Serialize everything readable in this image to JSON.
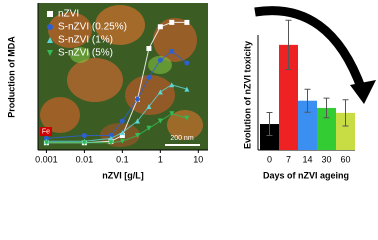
{
  "chart_data": [
    {
      "type": "scatter",
      "xlabel": "nZVI [g/L]",
      "ylabel": "Production of MDA",
      "log_x": true,
      "xlim": [
        0.0006,
        18
      ],
      "ylim": [
        0,
        1
      ],
      "xticks": [
        0.001,
        0.01,
        0.1,
        1,
        10
      ],
      "x": [
        0.001,
        0.01,
        0.05,
        0.1,
        0.25,
        0.5,
        1,
        2,
        5
      ],
      "series": [
        {
          "name": "nZVI",
          "color": "#ffffff",
          "marker": "square",
          "values": [
            0.05,
            0.05,
            0.06,
            0.1,
            0.35,
            0.7,
            0.85,
            0.88,
            0.88
          ]
        },
        {
          "name": "S-nZVI (0.25%)",
          "color": "#2f5fd0",
          "marker": "circle",
          "values": [
            0.08,
            0.1,
            0.1,
            0.2,
            0.35,
            0.5,
            0.62,
            0.68,
            0.6
          ]
        },
        {
          "name": "S-nZVI (1%)",
          "color": "#5ad6d6",
          "marker": "triangle-up",
          "values": [
            0.06,
            0.06,
            0.08,
            0.12,
            0.2,
            0.3,
            0.4,
            0.45,
            0.42
          ]
        },
        {
          "name": "S-nZVI (5%)",
          "color": "#33bb55",
          "marker": "triangle-down",
          "values": [
            0.05,
            0.05,
            0.05,
            0.06,
            0.1,
            0.15,
            0.2,
            0.25,
            0.22
          ]
        }
      ],
      "annotations": [
        "200 nm",
        "Fe"
      ]
    },
    {
      "type": "bar",
      "xlabel": "Days of nZVI ageing",
      "ylabel": "Evolution of nZVI toxicity",
      "categories": [
        "0",
        "7",
        "14",
        "30",
        "60"
      ],
      "values": [
        0.79,
        3.2,
        1.5,
        1.28,
        1.13
      ],
      "errors": [
        0.35,
        0.75,
        0.35,
        0.3,
        0.4
      ],
      "colors": [
        "#000000",
        "#ee2222",
        "#3a8ff0",
        "#33cc33",
        "#c8dc44"
      ],
      "ylim": [
        0,
        3.5
      ]
    }
  ]
}
